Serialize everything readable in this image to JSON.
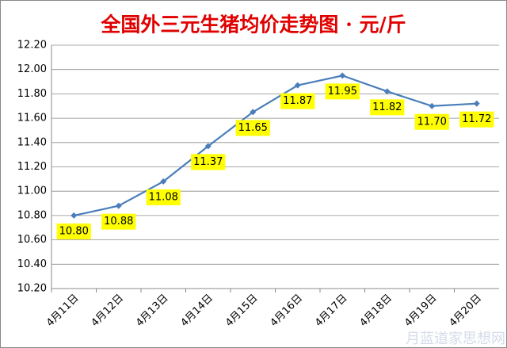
{
  "chart_data": {
    "type": "line",
    "title": "全国外三元生猪均价走势图 · 元/斤",
    "categories": [
      "4月11日",
      "4月12日",
      "4月13日",
      "4月14日",
      "4月15日",
      "4月16日",
      "4月17日",
      "4月18日",
      "4月19日",
      "4月20日"
    ],
    "values": [
      10.8,
      10.88,
      11.08,
      11.37,
      11.65,
      11.87,
      11.95,
      11.82,
      11.7,
      11.72
    ],
    "value_labels": [
      "10.80",
      "10.88",
      "11.08",
      "11.37",
      "11.65",
      "11.87",
      "11.95",
      "11.82",
      "11.70",
      "11.72"
    ],
    "color": "#4a7ebb",
    "ylim": [
      10.2,
      12.2
    ],
    "yticks": [
      {
        "value": 10.2,
        "label": "10.20"
      },
      {
        "value": 10.4,
        "label": "10.40"
      },
      {
        "value": 10.6,
        "label": "10.60"
      },
      {
        "value": 10.8,
        "label": "10.80"
      },
      {
        "value": 11,
        "label": "11.00"
      },
      {
        "value": 11.2,
        "label": "11.20"
      },
      {
        "value": 11.4,
        "label": "11.40"
      },
      {
        "value": 11.6,
        "label": "11.60"
      },
      {
        "value": 11.8,
        "label": "11.80"
      },
      {
        "value": 12,
        "label": "12.00"
      },
      {
        "value": 12.2,
        "label": "12.20"
      }
    ],
    "grid": true,
    "watermark": "月蓝道家思想网"
  }
}
